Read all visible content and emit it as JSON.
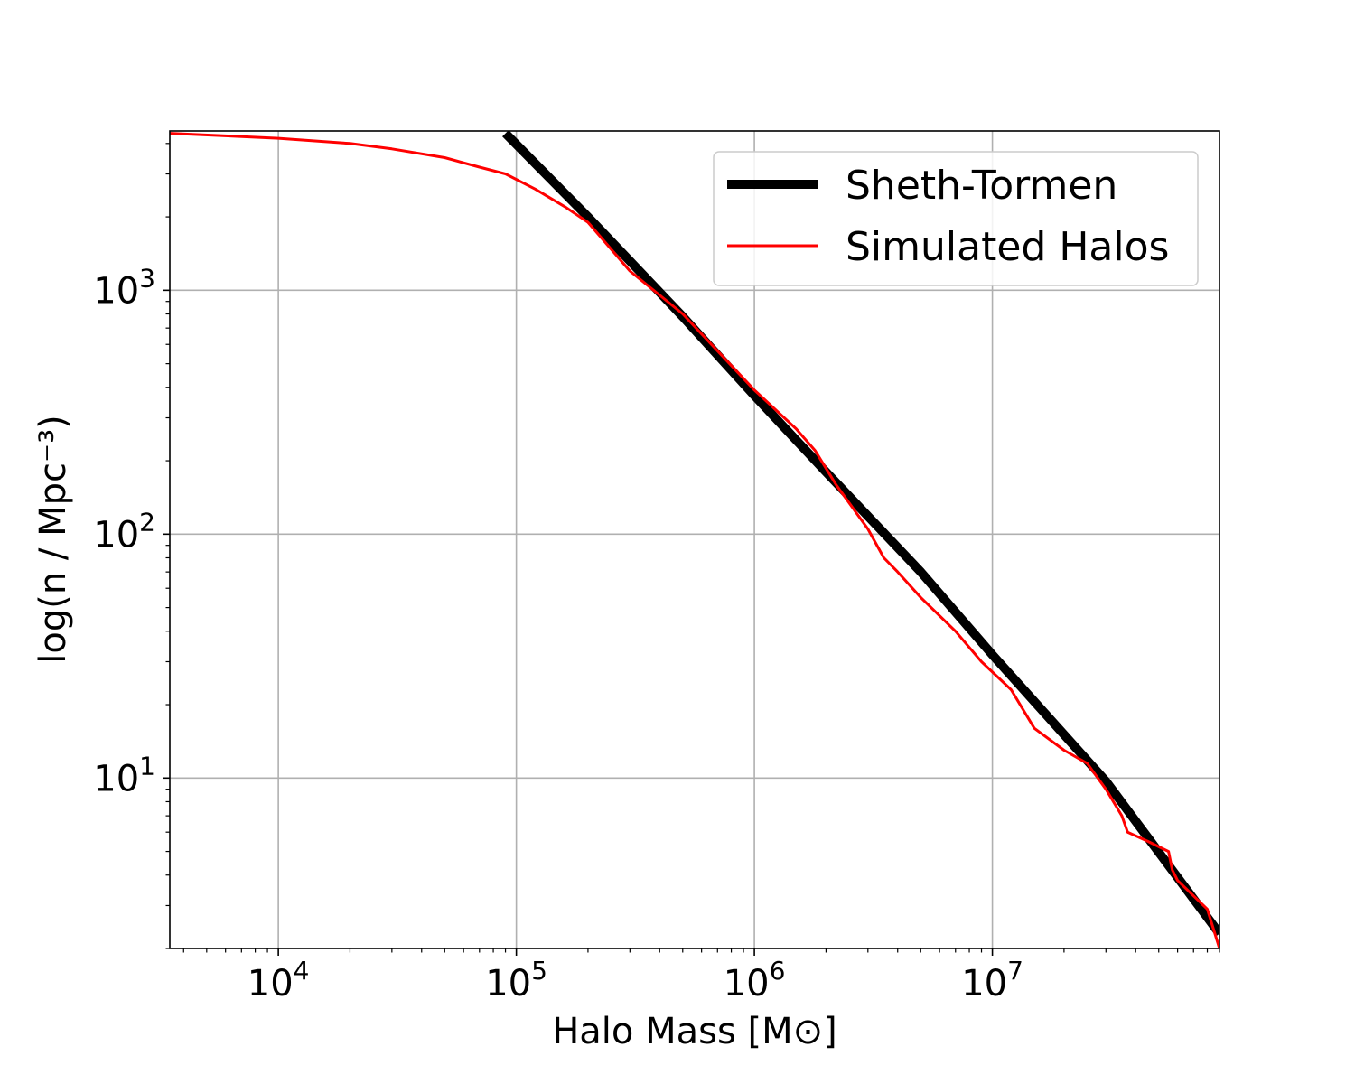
{
  "chart_data": {
    "type": "line",
    "xlabel": "Halo Mass [M⊙]",
    "ylabel": "log(n / Mpc⁻³)",
    "xscale": "log",
    "yscale": "log",
    "xlim": [
      3500,
      90000000
    ],
    "ylim": [
      2.0,
      4500
    ],
    "grid": true,
    "legend_position": "top-right",
    "x_ticks": [
      {
        "value": 10000,
        "label": "10",
        "exp": "4"
      },
      {
        "value": 100000,
        "label": "10",
        "exp": "5"
      },
      {
        "value": 1000000,
        "label": "10",
        "exp": "6"
      },
      {
        "value": 10000000,
        "label": "10",
        "exp": "7"
      }
    ],
    "y_ticks": [
      {
        "value": 10,
        "label": "10",
        "exp": "1"
      },
      {
        "value": 100,
        "label": "10",
        "exp": "2"
      },
      {
        "value": 1000,
        "label": "10",
        "exp": "3"
      }
    ],
    "series": [
      {
        "name": "Sheth-Tormen",
        "color": "#000000",
        "style": "thick",
        "x": [
          90000,
          200000,
          500000,
          1000000,
          2000000,
          5000000,
          10000000,
          30000000,
          90000000
        ],
        "y": [
          4400,
          2000,
          780,
          370,
          180,
          70,
          32,
          9.7,
          2.3
        ]
      },
      {
        "name": "Simulated Halos",
        "color": "#ff0000",
        "style": "thin",
        "x": [
          3500,
          10000,
          20000,
          30000,
          50000,
          70000,
          90000,
          120000,
          160000,
          200000,
          300000,
          500000,
          1000000,
          1500000,
          1800000,
          2200000,
          3000000,
          3500000,
          4000000,
          5000000,
          7000000,
          9000000,
          12000000,
          15000000,
          20000000,
          25000000,
          30000000,
          35000000,
          37000000,
          45000000,
          55000000,
          57000000,
          60000000,
          80000000,
          90000000
        ],
        "y": [
          4400,
          4200,
          4000,
          3800,
          3500,
          3200,
          3000,
          2600,
          2200,
          1900,
          1200,
          800,
          390,
          270,
          220,
          160,
          105,
          80,
          70,
          55,
          40,
          30,
          23,
          16,
          13,
          11.5,
          9,
          7,
          6,
          5.5,
          5.0,
          4.2,
          3.8,
          2.9,
          2.0
        ]
      }
    ]
  }
}
